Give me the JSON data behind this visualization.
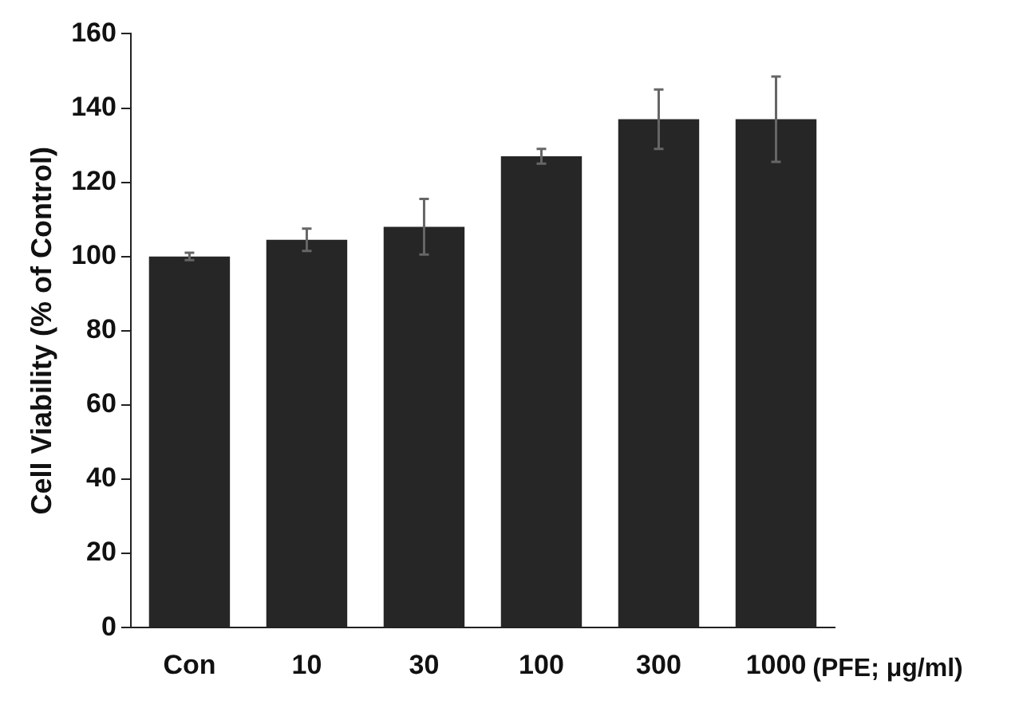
{
  "chart_data": {
    "type": "bar",
    "categories": [
      "Con",
      "10",
      "30",
      "100",
      "300",
      "1000"
    ],
    "values": [
      100,
      104.5,
      108,
      127,
      137,
      137
    ],
    "errors": [
      1,
      3,
      7.5,
      2,
      8,
      11.5
    ],
    "color": "#262626",
    "xlabel": "(PFE; μg/ml)",
    "ylabel": "Cell Viability (% of Control)",
    "ylim": [
      0,
      160
    ],
    "yticks": [
      0,
      20,
      40,
      60,
      80,
      100,
      120,
      140,
      160
    ],
    "grid": false,
    "legend": false
  }
}
